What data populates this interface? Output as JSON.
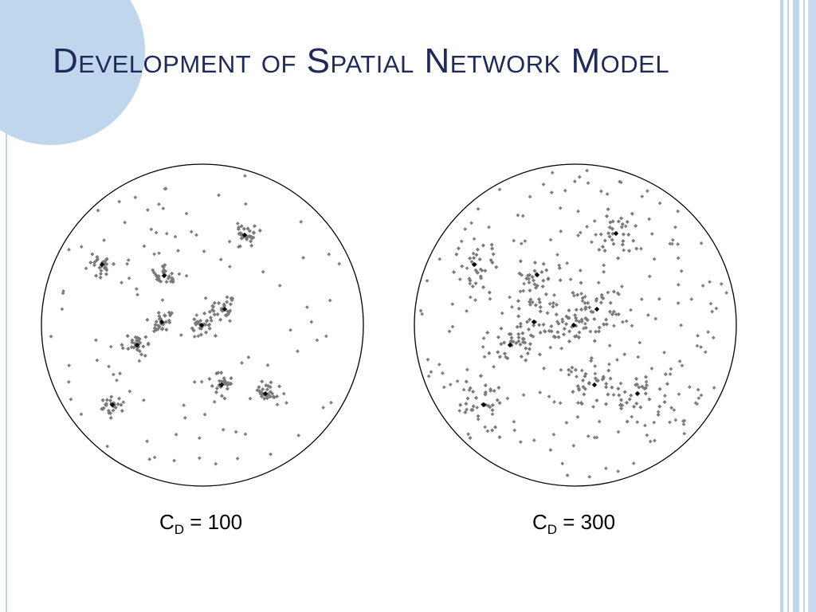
{
  "title": "Development of Spatial Network Model",
  "panels": [
    {
      "caption": {
        "symbol": "C",
        "subscript": "D",
        "text": "= 100"
      }
    },
    {
      "caption": {
        "symbol": "C",
        "subscript": "D",
        "text": "= 300"
      }
    }
  ]
}
